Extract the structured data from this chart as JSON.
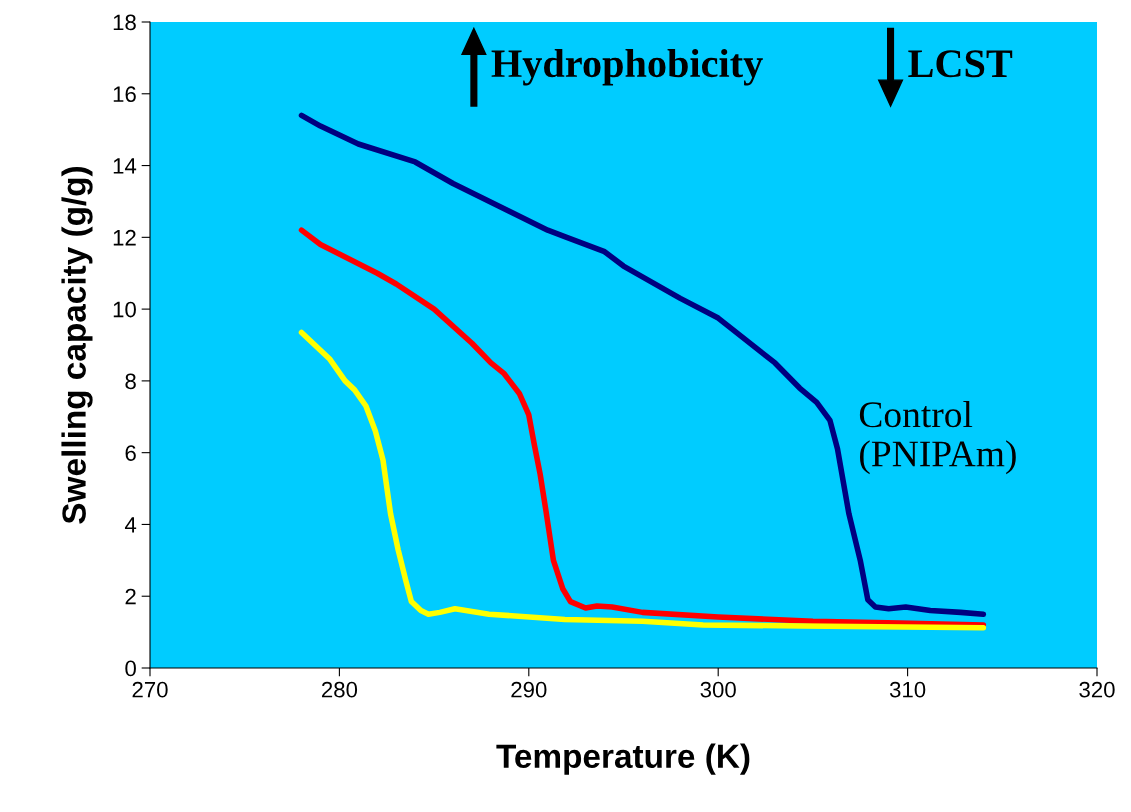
{
  "chart_data": {
    "type": "line",
    "xlabel": "Temperature (K)",
    "ylabel": "Swelling capacity (g/g)",
    "xlim": [
      270,
      320
    ],
    "xticks": [
      270,
      280,
      290,
      300,
      310,
      320
    ],
    "ylim": [
      0,
      18
    ],
    "yticks": [
      0,
      2,
      4,
      6,
      8,
      10,
      12,
      14,
      16,
      18
    ],
    "grid": false,
    "legend": false,
    "marker": "none",
    "line_style": "solid",
    "annotations": [
      "Hydrophobicity",
      "LCST",
      "Control\n(PNIPAm)"
    ],
    "series": [
      {
        "color": "#000080",
        "x": [
          278,
          279,
          281,
          284,
          285,
          286,
          291,
          292,
          294,
          295,
          298,
          300,
          303,
          304.3,
          305.2,
          305.9,
          306.3,
          306.9,
          307.5,
          307.9,
          308.3,
          309,
          309.9,
          311.2,
          312.8,
          314
        ],
        "values": [
          15.4,
          15.1,
          14.6,
          14.1,
          13.8,
          13.5,
          12.2,
          12.0,
          11.6,
          11.2,
          10.3,
          9.75,
          8.5,
          7.8,
          7.4,
          6.9,
          6.1,
          4.3,
          3.0,
          1.9,
          1.7,
          1.65,
          1.7,
          1.6,
          1.55,
          1.5
        ]
      },
      {
        "color": "#ff0000",
        "x": [
          278,
          279,
          282,
          283,
          285,
          287,
          288,
          288.7,
          289.5,
          290,
          290.3,
          290.6,
          290.9,
          291.3,
          291.8,
          292.2,
          293,
          293.6,
          294.4,
          296,
          300,
          305,
          309.6,
          314
        ],
        "values": [
          12.2,
          11.8,
          11.0,
          10.7,
          10.0,
          9.05,
          8.5,
          8.2,
          7.65,
          7.05,
          6.2,
          5.4,
          4.4,
          3.0,
          2.2,
          1.85,
          1.67,
          1.73,
          1.7,
          1.55,
          1.42,
          1.3,
          1.25,
          1.2
        ]
      },
      {
        "color": "#ffff00",
        "x": [
          278,
          279.5,
          280.3,
          280.8,
          281.4,
          281.9,
          282.3,
          282.7,
          283.1,
          283.5,
          283.8,
          284.3,
          284.7,
          285.3,
          286.1,
          287.9,
          291.9,
          296,
          299.2,
          304.4,
          314
        ],
        "values": [
          9.35,
          8.6,
          8.0,
          7.75,
          7.3,
          6.6,
          5.8,
          4.3,
          3.3,
          2.45,
          1.85,
          1.6,
          1.5,
          1.55,
          1.65,
          1.5,
          1.35,
          1.3,
          1.2,
          1.17,
          1.12
        ]
      }
    ]
  }
}
